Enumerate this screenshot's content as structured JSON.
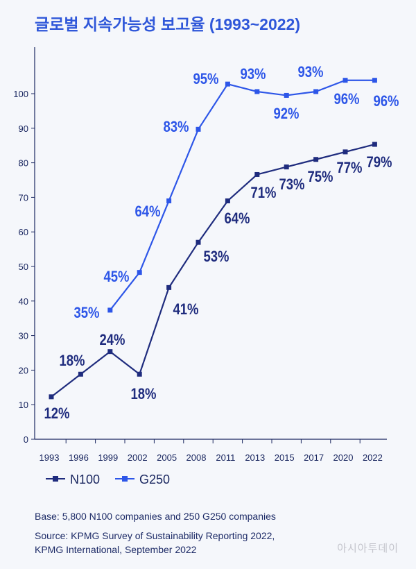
{
  "chart_data": {
    "type": "line",
    "title": "글로벌 지속가능성 보고율 (1993~2022)",
    "categories": [
      "1993",
      "1996",
      "1999",
      "2002",
      "2005",
      "2008",
      "2011",
      "2013",
      "2015",
      "2017",
      "2020",
      "2022"
    ],
    "yticks": [
      0,
      10,
      20,
      30,
      40,
      50,
      60,
      70,
      80,
      90,
      100
    ],
    "ylim": [
      0,
      100
    ],
    "grid": false,
    "legend": "bottom-left",
    "series": [
      {
        "name": "N100",
        "color": "#1f2c7e",
        "values": [
          12,
          18,
          24,
          18,
          41,
          53,
          64,
          71,
          73,
          75,
          77,
          79
        ],
        "labels": [
          "12%",
          "18%",
          "24%",
          "18%",
          "41%",
          "53%",
          "64%",
          "71%",
          "73%",
          "75%",
          "77%",
          "79%"
        ]
      },
      {
        "name": "G250",
        "color": "#2d56e8",
        "values": [
          null,
          null,
          35,
          45,
          64,
          83,
          95,
          93,
          92,
          93,
          96,
          96
        ],
        "labels": [
          null,
          null,
          "35%",
          "45%",
          "64%",
          "83%",
          "95%",
          "93%",
          "92%",
          "93%",
          "96%",
          "96%"
        ]
      }
    ]
  },
  "footer": {
    "base": "Base: 5,800 N100 companies and 250 G250 companies",
    "source_line1": "Source: KPMG Survey of Sustainability Reporting 2022,",
    "source_line2": "KPMG International, September 2022"
  },
  "watermark": "아시아투데이"
}
